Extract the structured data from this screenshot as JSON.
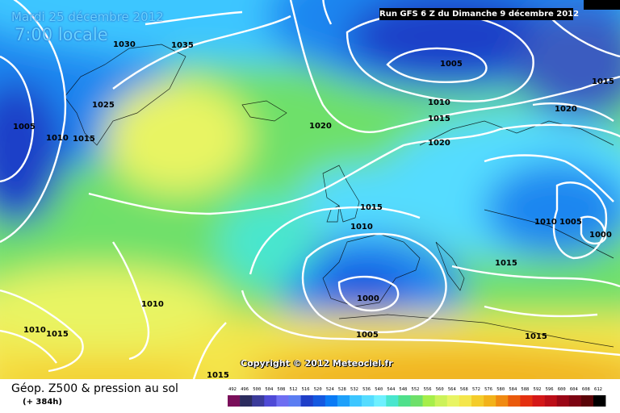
{
  "header": {
    "date": "Mardi 25 décembre 2012",
    "local_time": "7:00 locale",
    "run": "Run GFS 6 Z du Dimanche 9 décembre 2012"
  },
  "copyright": "Copyright © 2012 Meteociel.fr",
  "footer": {
    "title": "Géop. Z500 & pression au sol",
    "forecast_hour": "(+ 384h)"
  },
  "legend": {
    "values": [
      "492",
      "496",
      "500",
      "504",
      "508",
      "512",
      "516",
      "520",
      "524",
      "528",
      "532",
      "536",
      "540",
      "544",
      "548",
      "552",
      "556",
      "560",
      "564",
      "568",
      "572",
      "576",
      "580",
      "584",
      "588",
      "592",
      "596",
      "600",
      "604",
      "608",
      "612"
    ],
    "colors": [
      "#7a0f5a",
      "#2c2c5e",
      "#3b3b9a",
      "#4f4ad6",
      "#6e6ef2",
      "#5b7df2",
      "#1f3fc8",
      "#1458e0",
      "#0a7af5",
      "#1ea0fa",
      "#3cc6ff",
      "#55dcff",
      "#6ef0ff",
      "#49e6ce",
      "#4fe08c",
      "#6ee06a",
      "#a6ee4a",
      "#ccf25a",
      "#e8f464",
      "#f4e64c",
      "#f4cc2a",
      "#f2b21a",
      "#f08a12",
      "#ea5a0c",
      "#e43010",
      "#d41818",
      "#bc0e18",
      "#9a0616",
      "#7c0412",
      "#5a0408",
      "#000000"
    ]
  },
  "pressure_labels": [
    "1030",
    "1035",
    "1025",
    "1005",
    "1010",
    "1015",
    "1020",
    "1005",
    "1010",
    "1015",
    "1020",
    "1020",
    "1015",
    "1010",
    "1015",
    "1010",
    "1005",
    "1000",
    "1015",
    "1000",
    "1005",
    "1010",
    "1010",
    "1015",
    "1015",
    "1015"
  ]
}
